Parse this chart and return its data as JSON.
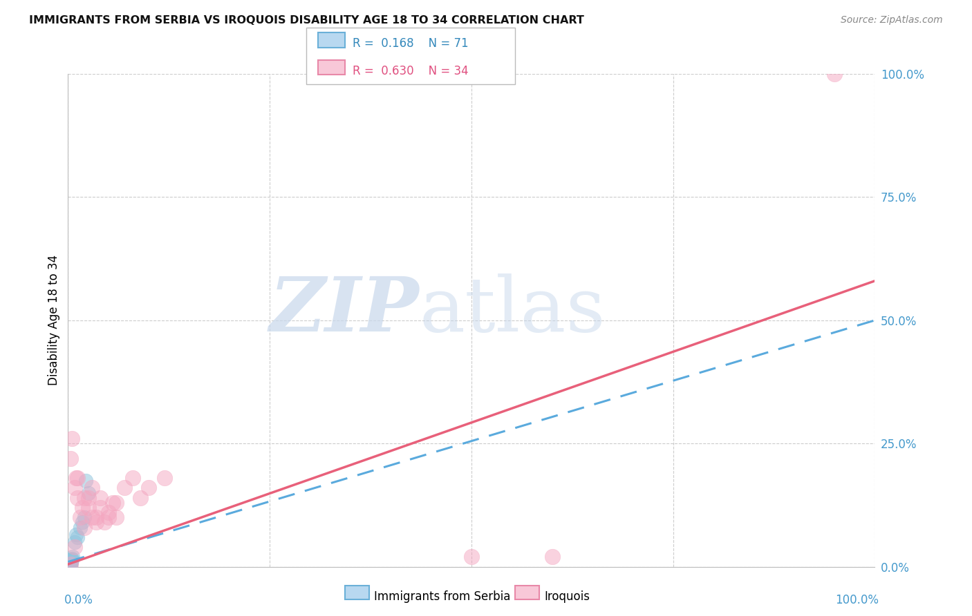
{
  "title": "IMMIGRANTS FROM SERBIA VS IROQUOIS DISABILITY AGE 18 TO 34 CORRELATION CHART",
  "source": "Source: ZipAtlas.com",
  "ylabel": "Disability Age 18 to 34",
  "legend_label_blue": "Immigrants from Serbia",
  "legend_label_pink": "Iroquois",
  "ytick_labels": [
    "0.0%",
    "25.0%",
    "50.0%",
    "75.0%",
    "100.0%"
  ],
  "ytick_values": [
    0.0,
    0.25,
    0.5,
    0.75,
    1.0
  ],
  "xtick_values": [
    0.0,
    0.25,
    0.5,
    0.75,
    1.0
  ],
  "blue_color": "#92c5de",
  "pink_color": "#f4a6c0",
  "blue_line_color": "#5aaadd",
  "pink_line_color": "#e8607a",
  "blue_line_x": [
    0.0,
    1.0
  ],
  "blue_line_y": [
    0.01,
    0.5
  ],
  "pink_line_x": [
    0.0,
    1.0
  ],
  "pink_line_y": [
    0.005,
    0.58
  ],
  "blue_scatter_x": [
    0.001,
    0.002,
    0.001,
    0.003,
    0.002,
    0.001,
    0.003,
    0.002,
    0.001,
    0.002,
    0.001,
    0.002,
    0.003,
    0.001,
    0.002,
    0.003,
    0.001,
    0.002,
    0.001,
    0.003,
    0.002,
    0.001,
    0.002,
    0.003,
    0.001,
    0.002,
    0.001,
    0.003,
    0.002,
    0.001,
    0.002,
    0.001,
    0.003,
    0.002,
    0.001,
    0.002,
    0.003,
    0.001,
    0.002,
    0.001,
    0.004,
    0.003,
    0.002,
    0.001,
    0.003,
    0.002,
    0.001,
    0.002,
    0.003,
    0.001,
    0.005,
    0.004,
    0.003,
    0.002,
    0.001,
    0.003,
    0.002,
    0.001,
    0.002,
    0.001,
    0.006,
    0.005,
    0.004,
    0.008,
    0.01,
    0.015,
    0.02,
    0.012,
    0.018,
    0.025,
    0.022
  ],
  "blue_scatter_y": [
    0.005,
    0.01,
    0.005,
    0.008,
    0.006,
    0.003,
    0.007,
    0.004,
    0.002,
    0.006,
    0.003,
    0.007,
    0.005,
    0.002,
    0.008,
    0.004,
    0.003,
    0.006,
    0.002,
    0.007,
    0.004,
    0.003,
    0.006,
    0.005,
    0.002,
    0.007,
    0.004,
    0.008,
    0.003,
    0.005,
    0.006,
    0.002,
    0.007,
    0.004,
    0.003,
    0.005,
    0.008,
    0.002,
    0.006,
    0.003,
    0.01,
    0.008,
    0.006,
    0.004,
    0.012,
    0.008,
    0.005,
    0.009,
    0.011,
    0.006,
    0.015,
    0.012,
    0.01,
    0.008,
    0.006,
    0.014,
    0.01,
    0.007,
    0.009,
    0.005,
    0.02,
    0.016,
    0.014,
    0.05,
    0.065,
    0.08,
    0.1,
    0.06,
    0.09,
    0.15,
    0.175
  ],
  "pink_scatter_x": [
    0.003,
    0.005,
    0.008,
    0.01,
    0.012,
    0.015,
    0.018,
    0.02,
    0.025,
    0.03,
    0.035,
    0.04,
    0.045,
    0.05,
    0.055,
    0.06,
    0.008,
    0.012,
    0.02,
    0.025,
    0.03,
    0.035,
    0.04,
    0.05,
    0.06,
    0.07,
    0.08,
    0.09,
    0.1,
    0.12,
    0.5,
    0.6,
    0.95,
    0.003
  ],
  "pink_scatter_y": [
    0.005,
    0.26,
    0.04,
    0.18,
    0.14,
    0.1,
    0.12,
    0.08,
    0.14,
    0.16,
    0.1,
    0.12,
    0.09,
    0.11,
    0.13,
    0.1,
    0.16,
    0.18,
    0.14,
    0.12,
    0.1,
    0.09,
    0.14,
    0.1,
    0.13,
    0.16,
    0.18,
    0.14,
    0.16,
    0.18,
    0.02,
    0.02,
    1.0,
    0.22
  ]
}
